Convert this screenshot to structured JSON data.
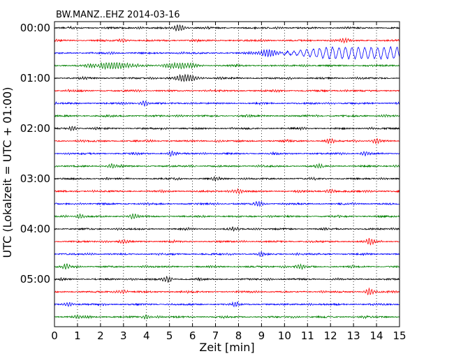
{
  "chart_data": {
    "type": "line",
    "title": "BW.MANZ..EHZ 2014-03-16",
    "xlabel": "Zeit  [min]",
    "ylabel": "UTC (Lokalzeit = UTC + 01:00)",
    "xlim": [
      0,
      15
    ],
    "xticks": [
      0,
      1,
      2,
      3,
      4,
      5,
      6,
      7,
      8,
      9,
      10,
      11,
      12,
      13,
      14,
      15
    ],
    "yticks": [
      "00:00",
      "01:00",
      "02:00",
      "03:00",
      "04:00",
      "05:00"
    ],
    "trace_interval_minutes": 15,
    "trace_count": 24,
    "trace_colors": [
      "#000000",
      "#ff0000",
      "#0000ff",
      "#008000"
    ],
    "grid": "vertical dotted",
    "traces": [
      {
        "row": 0,
        "color": "#000000",
        "events": [
          {
            "t": 5.4,
            "amp": 0.45,
            "dur": 0.4
          }
        ]
      },
      {
        "row": 1,
        "color": "#ff0000",
        "events": [
          {
            "t": 3.0,
            "amp": 0.3,
            "dur": 0.3
          },
          {
            "t": 12.6,
            "amp": 0.3,
            "dur": 0.3
          }
        ]
      },
      {
        "row": 2,
        "color": "#0000ff",
        "events": [
          {
            "t": 9.3,
            "amp": 0.5,
            "dur": 0.6
          }
        ],
        "swell": {
          "start": 9.5,
          "amp": 1.1,
          "period": 0.28
        }
      },
      {
        "row": 3,
        "color": "#008000",
        "events": [
          {
            "t": 2.5,
            "amp": 0.45,
            "dur": 1.5
          },
          {
            "t": 5.5,
            "amp": 0.4,
            "dur": 1.0
          }
        ]
      },
      {
        "row": 4,
        "color": "#000000",
        "events": [
          {
            "t": 5.7,
            "amp": 0.45,
            "dur": 0.8
          }
        ]
      },
      {
        "row": 5,
        "color": "#ff0000",
        "events": []
      },
      {
        "row": 6,
        "color": "#0000ff",
        "events": [
          {
            "t": 3.9,
            "amp": 0.35,
            "dur": 0.3
          }
        ]
      },
      {
        "row": 7,
        "color": "#008000",
        "events": []
      },
      {
        "row": 8,
        "color": "#000000",
        "events": [
          {
            "t": 0.8,
            "amp": 0.3,
            "dur": 0.3
          }
        ]
      },
      {
        "row": 9,
        "color": "#ff0000",
        "events": [
          {
            "t": 12.0,
            "amp": 0.35,
            "dur": 0.3
          },
          {
            "t": 14.0,
            "amp": 0.35,
            "dur": 0.3
          }
        ]
      },
      {
        "row": 10,
        "color": "#0000ff",
        "events": [
          {
            "t": 5.1,
            "amp": 0.35,
            "dur": 0.3
          },
          {
            "t": 13.5,
            "amp": 0.3,
            "dur": 0.3
          }
        ]
      },
      {
        "row": 11,
        "color": "#008000",
        "events": [
          {
            "t": 2.5,
            "amp": 0.3,
            "dur": 0.3
          },
          {
            "t": 11.5,
            "amp": 0.3,
            "dur": 0.3
          }
        ]
      },
      {
        "row": 12,
        "color": "#000000",
        "events": [
          {
            "t": 7.0,
            "amp": 0.3,
            "dur": 0.3
          }
        ]
      },
      {
        "row": 13,
        "color": "#ff0000",
        "events": [
          {
            "t": 8.0,
            "amp": 0.3,
            "dur": 0.3
          },
          {
            "t": 12.0,
            "amp": 0.3,
            "dur": 0.3
          }
        ]
      },
      {
        "row": 14,
        "color": "#0000ff",
        "events": [
          {
            "t": 8.9,
            "amp": 0.35,
            "dur": 0.3
          }
        ]
      },
      {
        "row": 15,
        "color": "#008000",
        "events": [
          {
            "t": 3.4,
            "amp": 0.35,
            "dur": 0.3
          },
          {
            "t": 1.1,
            "amp": 0.3,
            "dur": 0.3
          }
        ]
      },
      {
        "row": 16,
        "color": "#000000",
        "events": [
          {
            "t": 7.8,
            "amp": 0.3,
            "dur": 0.3
          }
        ]
      },
      {
        "row": 17,
        "color": "#ff0000",
        "events": [
          {
            "t": 13.7,
            "amp": 0.4,
            "dur": 0.3
          },
          {
            "t": 3.0,
            "amp": 0.25,
            "dur": 0.3
          }
        ]
      },
      {
        "row": 18,
        "color": "#0000ff",
        "events": [
          {
            "t": 9.0,
            "amp": 0.25,
            "dur": 0.3
          }
        ]
      },
      {
        "row": 19,
        "color": "#008000",
        "events": [
          {
            "t": 0.5,
            "amp": 0.35,
            "dur": 0.3
          },
          {
            "t": 10.7,
            "amp": 0.3,
            "dur": 0.3
          }
        ]
      },
      {
        "row": 20,
        "color": "#000000",
        "events": [
          {
            "t": 4.9,
            "amp": 0.4,
            "dur": 0.3
          }
        ]
      },
      {
        "row": 21,
        "color": "#ff0000",
        "events": [
          {
            "t": 13.7,
            "amp": 0.45,
            "dur": 0.3
          },
          {
            "t": 3.0,
            "amp": 0.25,
            "dur": 0.3
          }
        ]
      },
      {
        "row": 22,
        "color": "#0000ff",
        "events": [
          {
            "t": 0.6,
            "amp": 0.3,
            "dur": 0.3
          },
          {
            "t": 7.9,
            "amp": 0.3,
            "dur": 0.3
          }
        ]
      },
      {
        "row": 23,
        "color": "#008000",
        "events": [
          {
            "t": 4.0,
            "amp": 0.25,
            "dur": 0.3
          },
          {
            "t": 1.0,
            "amp": 0.25,
            "dur": 0.3
          }
        ]
      }
    ]
  }
}
